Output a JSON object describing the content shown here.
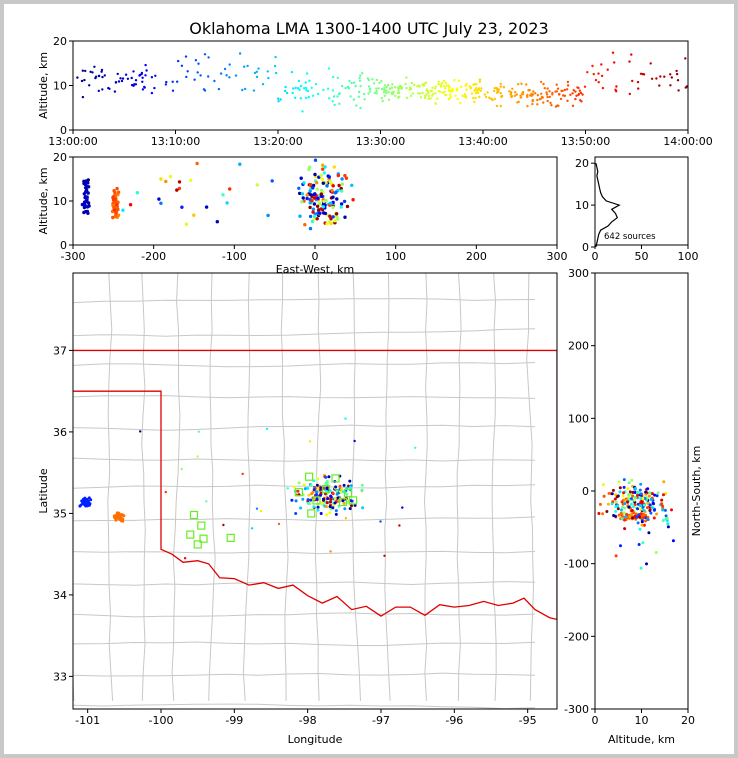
{
  "figure": {
    "title": "Oklahoma LMA 1300-1400 UTC July 23, 2023",
    "colors": {
      "background_frame": "#c8c8c8",
      "state_border": "#e00000",
      "county_lines": "#c8c8c8",
      "stations": "#66ee22",
      "histogram": "#000000"
    }
  },
  "chart_data": [
    {
      "id": "time_altitude",
      "type": "scatter",
      "xlabel": "",
      "ylabel": "Altitude, km",
      "xticks": [
        "13:00:00",
        "13:10:00",
        "13:20:00",
        "13:30:00",
        "13:40:00",
        "13:50:00",
        "14:00:00"
      ],
      "xlim": [
        "13:00:00",
        "14:00:00"
      ],
      "ylim": [
        0,
        20
      ],
      "yticks": [
        0,
        10,
        20
      ],
      "color_by": "time (blue early to red late)",
      "clusters_minutes_alt": [
        {
          "t": [
            0,
            10
          ],
          "alt_mean": 11,
          "alt_spread": 4,
          "n": 60
        },
        {
          "t": [
            10,
            20
          ],
          "alt_mean": 13,
          "alt_spread": 5,
          "n": 40
        },
        {
          "t": [
            20,
            30
          ],
          "alt_mean": 9,
          "alt_spread": 5,
          "n": 80
        },
        {
          "t": [
            30,
            40
          ],
          "alt_mean": 9,
          "alt_spread": 3,
          "n": 160
        },
        {
          "t": [
            40,
            50
          ],
          "alt_mean": 8,
          "alt_spread": 3,
          "n": 120
        },
        {
          "t": [
            50,
            60
          ],
          "alt_mean": 12,
          "alt_spread": 6,
          "n": 40
        }
      ]
    },
    {
      "id": "ew_altitude",
      "type": "scatter",
      "xlabel": "East-West, km",
      "ylabel": "Altitude, km",
      "xlim": [
        -300,
        300
      ],
      "xticks": [
        -300,
        -200,
        -100,
        0,
        100,
        200,
        300
      ],
      "ylim": [
        0,
        20
      ],
      "yticks": [
        0,
        10,
        20
      ]
    },
    {
      "id": "altitude_histogram",
      "type": "line",
      "xlim": [
        0,
        100
      ],
      "xticks": [
        0,
        50,
        100
      ],
      "ylim": [
        0,
        21
      ],
      "yticks": [
        0,
        10,
        20
      ],
      "annotation": "642 sources",
      "profile": [
        {
          "alt": 0,
          "count": 1
        },
        {
          "alt": 1,
          "count": 2
        },
        {
          "alt": 2,
          "count": 3
        },
        {
          "alt": 3,
          "count": 4
        },
        {
          "alt": 4,
          "count": 6
        },
        {
          "alt": 5,
          "count": 14
        },
        {
          "alt": 6,
          "count": 18
        },
        {
          "alt": 7,
          "count": 24
        },
        {
          "alt": 8,
          "count": 22
        },
        {
          "alt": 9,
          "count": 18
        },
        {
          "alt": 10,
          "count": 26
        },
        {
          "alt": 11,
          "count": 12
        },
        {
          "alt": 12,
          "count": 8
        },
        {
          "alt": 13,
          "count": 6
        },
        {
          "alt": 14,
          "count": 5
        },
        {
          "alt": 15,
          "count": 4
        },
        {
          "alt": 16,
          "count": 3
        },
        {
          "alt": 17,
          "count": 2
        },
        {
          "alt": 18,
          "count": 3
        },
        {
          "alt": 19,
          "count": 2
        },
        {
          "alt": 20,
          "count": 1
        }
      ]
    },
    {
      "id": "plan_view_map",
      "type": "scatter",
      "xlabel": "Longitude",
      "ylabel": "Latitude",
      "xlim": [
        -101.2,
        -94.6
      ],
      "ylim": [
        32.6,
        37.95
      ],
      "xticks": [
        -101,
        -100,
        -99,
        -98,
        -97,
        -96,
        -95
      ],
      "yticks": [
        33,
        34,
        35,
        36,
        37
      ],
      "stations": [
        {
          "lon": -99.55,
          "lat": 34.98
        },
        {
          "lon": -99.45,
          "lat": 34.85
        },
        {
          "lon": -99.6,
          "lat": 34.74
        },
        {
          "lon": -99.5,
          "lat": 34.62
        },
        {
          "lon": -99.42,
          "lat": 34.69
        },
        {
          "lon": -99.05,
          "lat": 34.7
        },
        {
          "lon": -97.98,
          "lat": 35.45
        },
        {
          "lon": -98.12,
          "lat": 35.26
        },
        {
          "lon": -97.88,
          "lat": 35.16
        },
        {
          "lon": -97.75,
          "lat": 35.3
        },
        {
          "lon": -97.62,
          "lat": 35.43
        },
        {
          "lon": -97.45,
          "lat": 35.25
        },
        {
          "lon": -97.52,
          "lat": 35.14
        },
        {
          "lon": -97.95,
          "lat": 35.0
        },
        {
          "lon": -97.38,
          "lat": 35.16
        }
      ],
      "clusters": [
        {
          "lon": -101.02,
          "lat": 35.13,
          "spread": 0.06,
          "color": "#0020ff",
          "n": 40
        },
        {
          "lon": -100.58,
          "lat": 34.96,
          "spread": 0.05,
          "color": "#ff7000",
          "n": 50
        },
        {
          "lon": -97.72,
          "lat": 35.22,
          "spread": 0.22,
          "color": "mixed",
          "n": 180
        }
      ]
    },
    {
      "id": "ns_altitude",
      "type": "scatter",
      "xlabel": "Altitude, km",
      "ylabel": "North-South, km",
      "xlim": [
        0,
        20
      ],
      "xticks": [
        0,
        10,
        20
      ],
      "ylim": [
        -300,
        300
      ],
      "yticks": [
        -300,
        -200,
        -100,
        0,
        100,
        200,
        300
      ]
    }
  ]
}
